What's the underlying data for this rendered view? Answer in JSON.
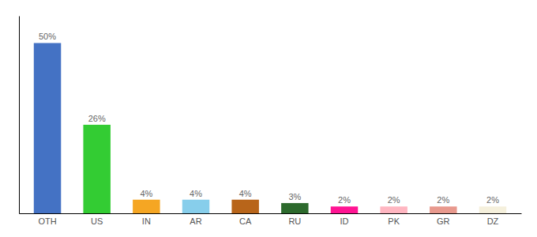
{
  "chart_data": {
    "type": "bar",
    "categories": [
      "OTH",
      "US",
      "IN",
      "AR",
      "CA",
      "RU",
      "ID",
      "PK",
      "GR",
      "DZ"
    ],
    "values": [
      50,
      26,
      4,
      4,
      4,
      3,
      2,
      2,
      2,
      2
    ],
    "value_labels": [
      "50%",
      "26%",
      "4%",
      "4%",
      "4%",
      "3%",
      "2%",
      "2%",
      "2%",
      "2%"
    ],
    "colors": [
      "#4472C4",
      "#33CC33",
      "#F5A623",
      "#87CEEB",
      "#B8651A",
      "#2D6A2D",
      "#FF1493",
      "#FFB6C1",
      "#E8998D",
      "#F5F0DC"
    ],
    "ylim": [
      0,
      58
    ],
    "yticks": [],
    "tick_labels": "x",
    "data_labels": true,
    "grid": false
  }
}
